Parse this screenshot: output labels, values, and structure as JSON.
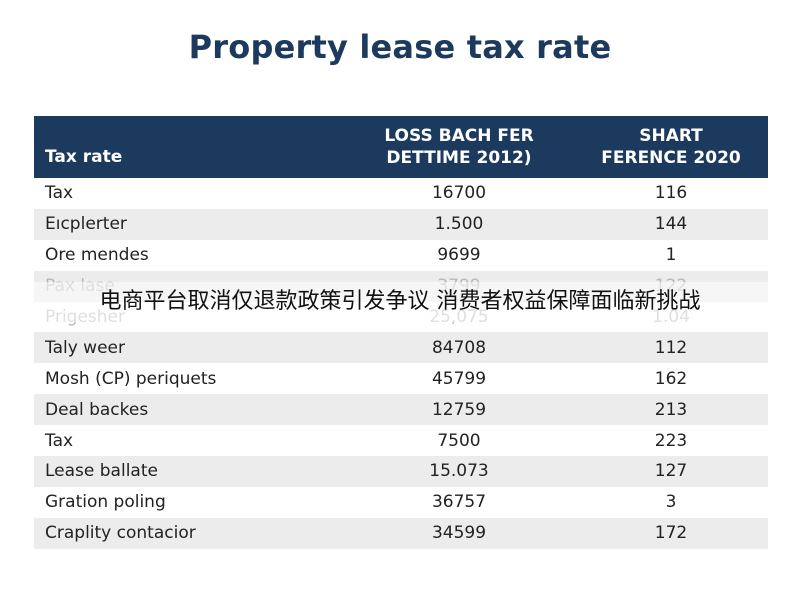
{
  "title": "Property lease tax rate",
  "overlay_text": "电商平台取消仅退款政策引发争议 消费者权益保障面临新挑战",
  "colors": {
    "header_bg": "#1c3a5e",
    "title": "#1c3a5e",
    "stripe": "#ececec"
  },
  "table": {
    "headers": [
      "Tax rate",
      "LOSS BACH FER DETTIME 2012)",
      "SHART FERENCE 2020"
    ],
    "header_lines": [
      [
        "Tax rate"
      ],
      [
        "LOSS BACH FER",
        "DETTIME 2012)"
      ],
      [
        "SHART",
        "FERENCE 2020"
      ]
    ],
    "rows": [
      [
        "Tax",
        "16700",
        "116"
      ],
      [
        "Eıcplerter",
        "1.500",
        "144"
      ],
      [
        "Ore mendes",
        "9699",
        "1"
      ],
      [
        "Pax lase",
        "3799",
        "122"
      ],
      [
        "Prigesher",
        "25,075",
        "1.04"
      ],
      [
        "Taly weer",
        "84708",
        "112"
      ],
      [
        "Mosh (CP) periquets",
        "45799",
        "162"
      ],
      [
        "Deal backes",
        "12759",
        "213"
      ],
      [
        "Tax",
        "7500",
        "223"
      ],
      [
        "Lease ballate",
        "15.073",
        "127"
      ],
      [
        "Gration poling",
        "36757",
        "3"
      ],
      [
        "Craplity contacior",
        "34599",
        "172"
      ]
    ]
  }
}
